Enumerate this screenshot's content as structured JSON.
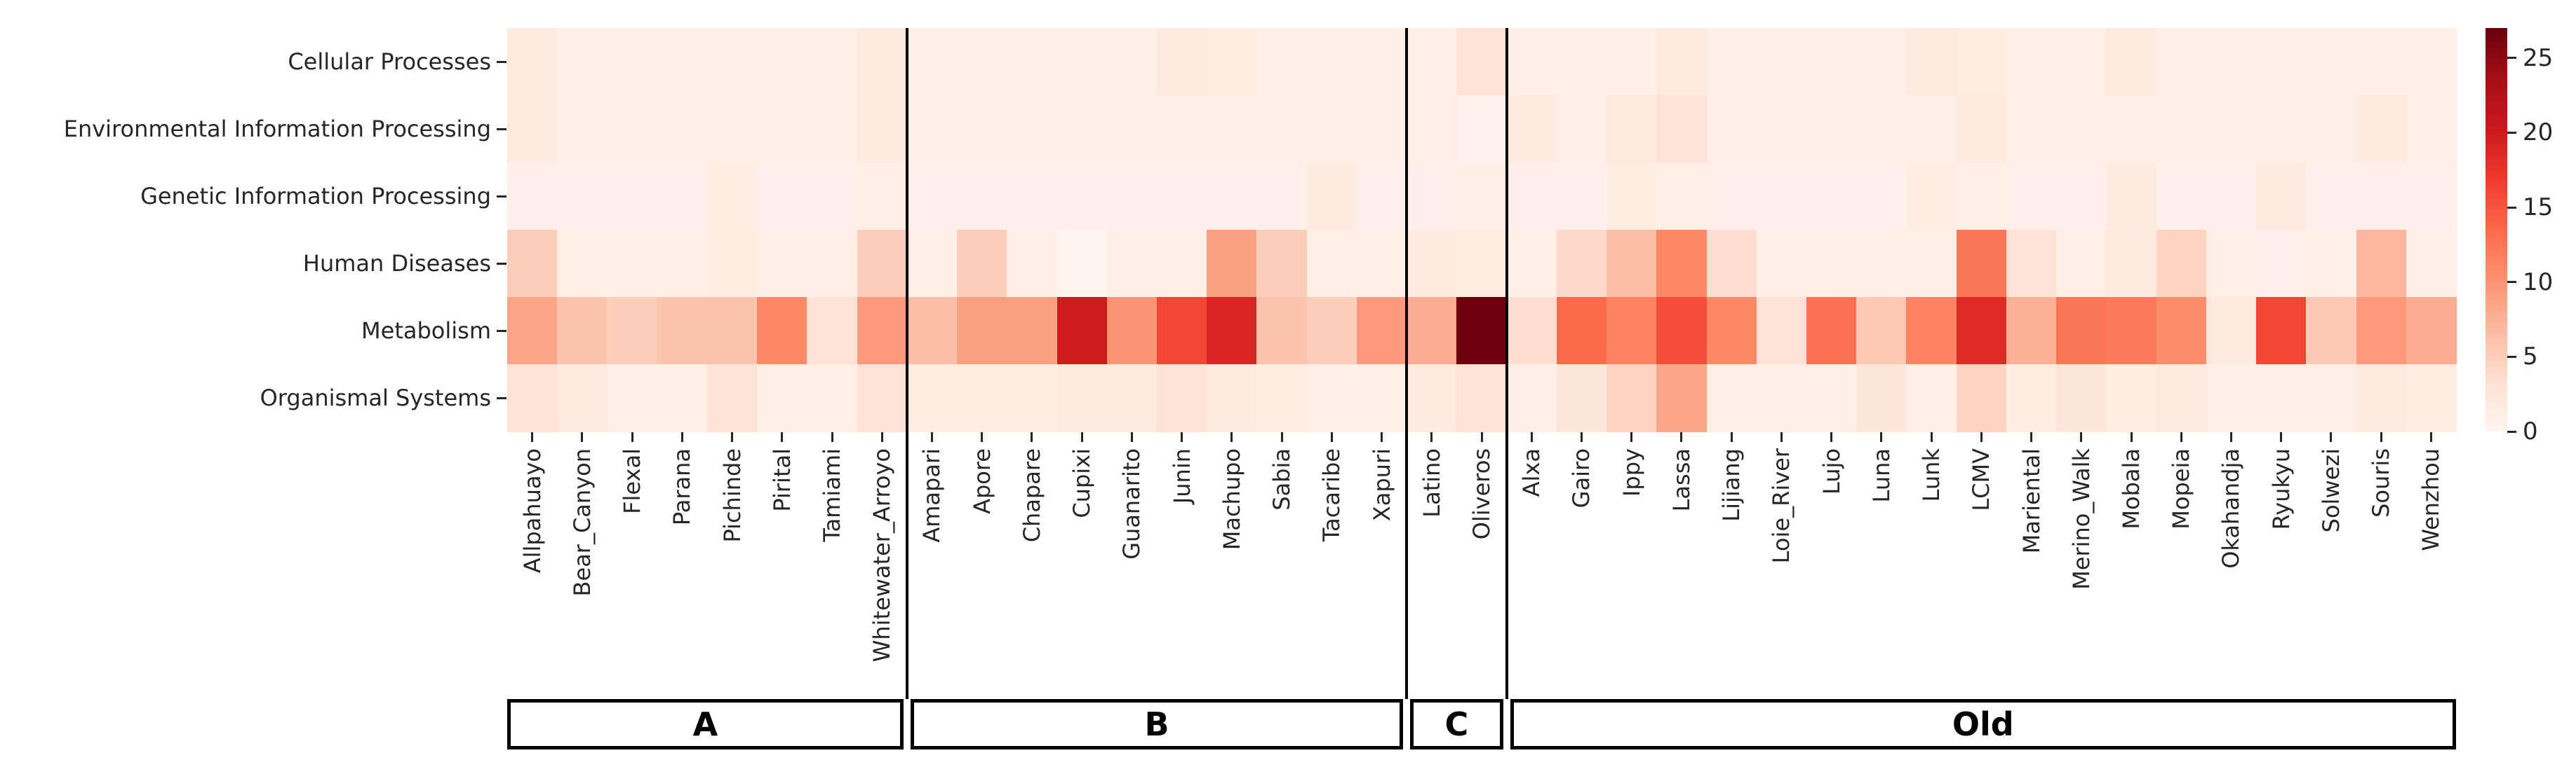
{
  "figure": {
    "background": "#ffffff",
    "accent_black": "#000000",
    "text_color": "#262626"
  },
  "chart_data": {
    "type": "heatmap",
    "title": "",
    "xlabel": "",
    "ylabel": "",
    "rows": [
      "Cellular Processes",
      "Environmental Information Processing",
      "Genetic Information Processing",
      "Human Diseases",
      "Metabolism",
      "Organismal Systems"
    ],
    "columns": [
      "Allpahuayo",
      "Bear_Canyon",
      "Flexal",
      "Parana",
      "Pichinde",
      "Pirital",
      "Tamiami",
      "Whitewater_Arroyo",
      "Amapari",
      "Apore",
      "Chapare",
      "Cupixi",
      "Guanarito",
      "Junin",
      "Machupo",
      "Sabia",
      "Tacaribe",
      "Xapuri",
      "Latino",
      "Oliveros",
      "Alxa",
      "Gairo",
      "Ippy",
      "Lassa",
      "Lijiang",
      "Loie_River",
      "Lujo",
      "Luna",
      "Lunk",
      "LCMV",
      "Mariental",
      "Merino_Walk",
      "Mobala",
      "Mopeia",
      "Okahandja",
      "Ryukyu",
      "Solwezi",
      "Souris",
      "Wenzhou"
    ],
    "groups": [
      {
        "label": "A",
        "start": 0,
        "count": 8
      },
      {
        "label": "B",
        "start": 8,
        "count": 10
      },
      {
        "label": "C",
        "start": 18,
        "count": 2
      },
      {
        "label": "Old",
        "start": 20,
        "count": 19
      }
    ],
    "values": [
      [
        2,
        1,
        1,
        1,
        1,
        1,
        1,
        2,
        1,
        1,
        1,
        1,
        1,
        2,
        1.5,
        1,
        1,
        1,
        1,
        3,
        1,
        1,
        1,
        2,
        1,
        1,
        1,
        1,
        2,
        1.5,
        1,
        1,
        2,
        1,
        1,
        1,
        1,
        1,
        1
      ],
      [
        2,
        1,
        1,
        1,
        1,
        1,
        1,
        2,
        1,
        1,
        1,
        1,
        1,
        1,
        1,
        1,
        1,
        1,
        1,
        0.5,
        2,
        1,
        2,
        3,
        1,
        1,
        1,
        1,
        1,
        2,
        1,
        1,
        1,
        1,
        1,
        1,
        1,
        2,
        1
      ],
      [
        0.7,
        0.7,
        0.7,
        0.7,
        1.5,
        0.7,
        0.7,
        1,
        0.7,
        0.7,
        0.7,
        0.7,
        0.7,
        0.7,
        0.7,
        0.7,
        1.8,
        0.7,
        0.7,
        1,
        0.7,
        0.7,
        1.5,
        1,
        0.7,
        0.7,
        0.7,
        0.7,
        1.5,
        1,
        0.7,
        0.7,
        1.8,
        0.7,
        0.7,
        1.8,
        0.7,
        0.7,
        0.7
      ],
      [
        5,
        1,
        1,
        1,
        1.5,
        1,
        1,
        5,
        1,
        5,
        1,
        0.3,
        1,
        1,
        9,
        5,
        1,
        1,
        2,
        1.5,
        1,
        4,
        6.5,
        11,
        3.5,
        1,
        1,
        1,
        1,
        12.5,
        3,
        1,
        2,
        4.5,
        1,
        0.8,
        1,
        7,
        1
      ],
      [
        8.5,
        6,
        5,
        6,
        6,
        11,
        3,
        9.5,
        6.5,
        9,
        9,
        20,
        10,
        16,
        19,
        6,
        5,
        9.5,
        8,
        26.5,
        3.5,
        13.5,
        11.5,
        15.5,
        11,
        3,
        13,
        5.5,
        11.5,
        18.5,
        7.5,
        12.5,
        12,
        10.5,
        2,
        16,
        5.5,
        9.5,
        8
      ],
      [
        3,
        2,
        1,
        1,
        3,
        1,
        1,
        3,
        1.5,
        1.5,
        1.5,
        2,
        2,
        3,
        2,
        1.5,
        1,
        1,
        2,
        3,
        1,
        2.5,
        4.5,
        8.5,
        1,
        1,
        1,
        2.5,
        1,
        4.5,
        1.5,
        2.5,
        1.5,
        2,
        1,
        1,
        1,
        2,
        1.5
      ]
    ],
    "vmin": 0,
    "vmax": 27,
    "colormap": "Reds",
    "colormap_stops": [
      "#fff5f0",
      "#fee0d2",
      "#fcbba1",
      "#fc9272",
      "#fb6a4a",
      "#ef3b2c",
      "#cb181d",
      "#a50f15",
      "#67000d"
    ],
    "colorbar_ticks": [
      0,
      5,
      10,
      15,
      20,
      25
    ],
    "legend_position": "right",
    "grid": false
  }
}
